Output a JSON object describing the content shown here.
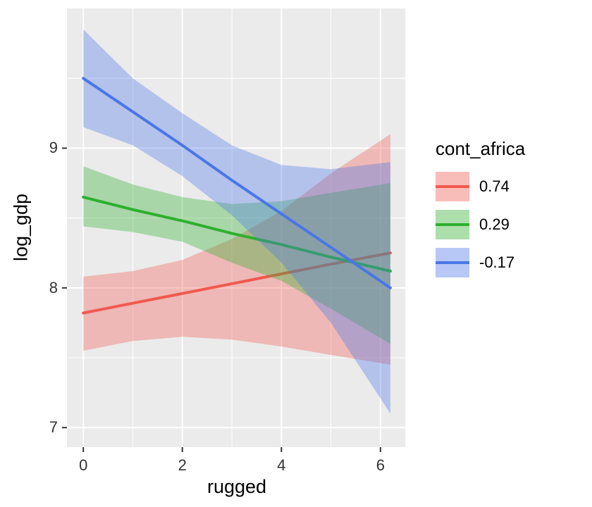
{
  "chart_data": {
    "type": "line",
    "title": "",
    "xlabel": "rugged",
    "ylabel": "log_gdp",
    "legend_title": "cont_africa",
    "legend_position": "right",
    "panel_bg": "#EBEBEB",
    "grid_color": "#FFFFFF",
    "ribbon_opacity": 0.35,
    "x_domain": [
      -0.33,
      6.5
    ],
    "y_domain": [
      6.86,
      10.0
    ],
    "x_major_ticks": [
      0,
      2,
      4,
      6
    ],
    "x_minor_ticks": [
      1,
      3,
      5
    ],
    "y_major_ticks": [
      7,
      8,
      9
    ],
    "y_minor_ticks": [
      7.5,
      8.5,
      9.5
    ],
    "x": [
      0,
      1,
      2,
      3,
      4,
      5,
      6.2
    ],
    "series": [
      {
        "name": "0.74",
        "color": "#F1594F",
        "line": [
          7.82,
          7.89,
          7.96,
          8.03,
          8.1,
          8.17,
          8.25
        ],
        "lower": [
          7.55,
          7.62,
          7.65,
          7.63,
          7.58,
          7.52,
          7.45
        ],
        "upper": [
          8.08,
          8.12,
          8.2,
          8.35,
          8.55,
          8.82,
          9.1
        ]
      },
      {
        "name": "0.29",
        "color": "#2FAF2F",
        "line": [
          8.65,
          8.56,
          8.48,
          8.39,
          8.31,
          8.22,
          8.12
        ],
        "lower": [
          8.44,
          8.4,
          8.33,
          8.18,
          8.05,
          7.85,
          7.6
        ],
        "upper": [
          8.87,
          8.74,
          8.65,
          8.6,
          8.62,
          8.68,
          8.75
        ]
      },
      {
        "name": "-0.17",
        "color": "#4A76E8",
        "line": [
          9.5,
          9.26,
          9.02,
          8.77,
          8.53,
          8.29,
          8.0
        ],
        "lower": [
          9.15,
          9.02,
          8.8,
          8.52,
          8.18,
          7.75,
          7.1
        ],
        "upper": [
          9.85,
          9.5,
          9.25,
          9.02,
          8.88,
          8.85,
          8.9
        ]
      }
    ]
  }
}
